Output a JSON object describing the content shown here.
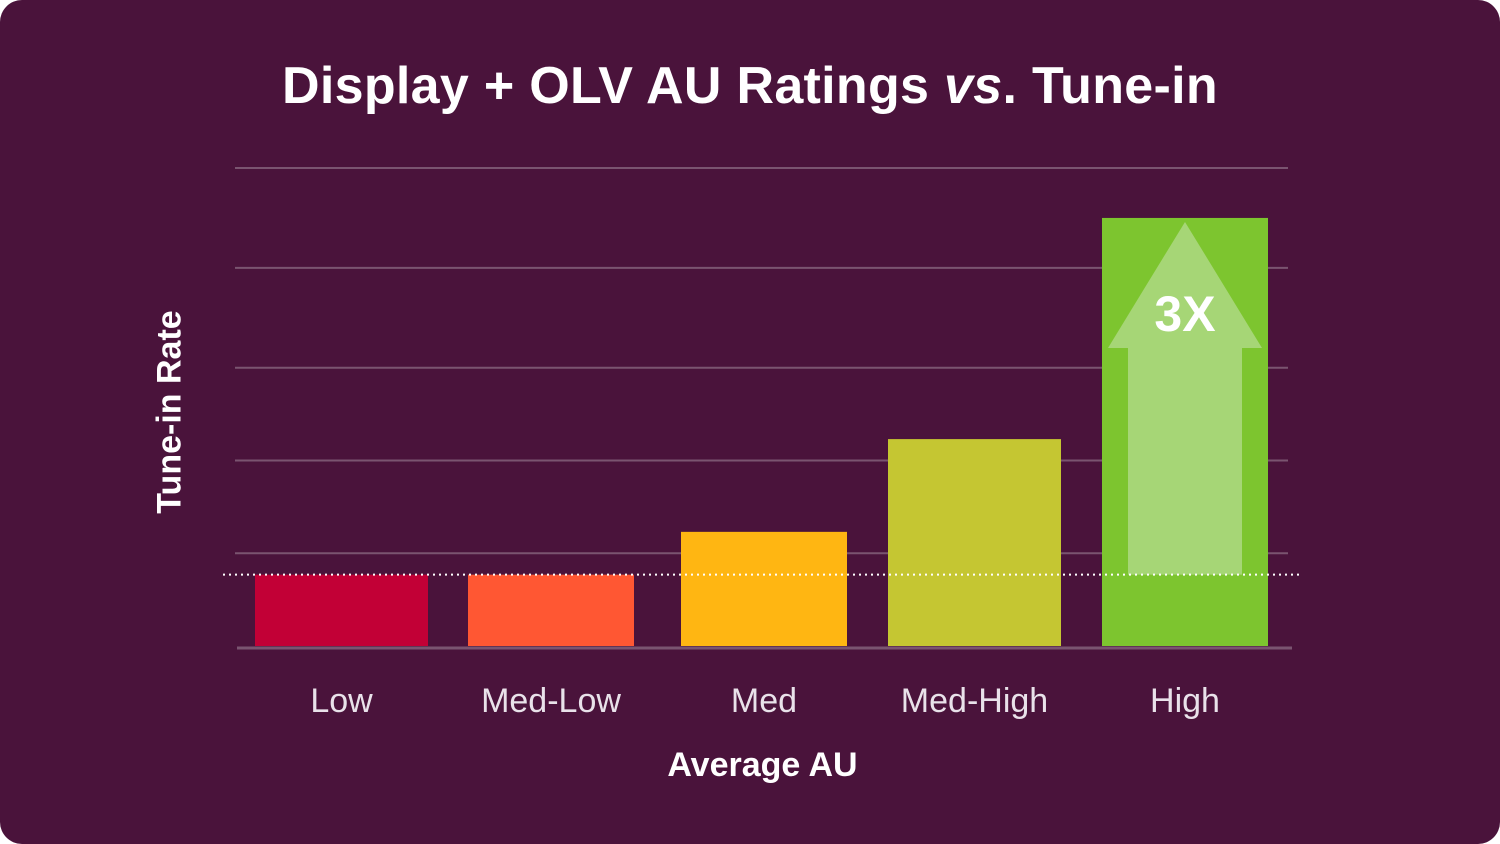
{
  "chart_data": {
    "type": "bar",
    "title_parts": [
      "Display + OLV AU Ratings ",
      "vs",
      ". Tune-in"
    ],
    "xlabel": "Average AU",
    "ylabel": "Tune-in Rate",
    "categories": [
      "Low",
      "Med-Low",
      "Med",
      "Med-High",
      "High"
    ],
    "values": [
      1.0,
      1.0,
      1.6,
      2.9,
      6.0
    ],
    "ylim": [
      0,
      6.7
    ],
    "gridlines": [
      1.3,
      2.6,
      3.9,
      5.3,
      6.7
    ],
    "baseline_value": 1.0,
    "colors": [
      "#c20036",
      "#ff5733",
      "#ffb612",
      "#c5c632",
      "#7dc52f"
    ],
    "highlight": {
      "category": "High",
      "label": "3X",
      "arrow_color": "#a6d676"
    },
    "grid": true,
    "legend": "none"
  }
}
